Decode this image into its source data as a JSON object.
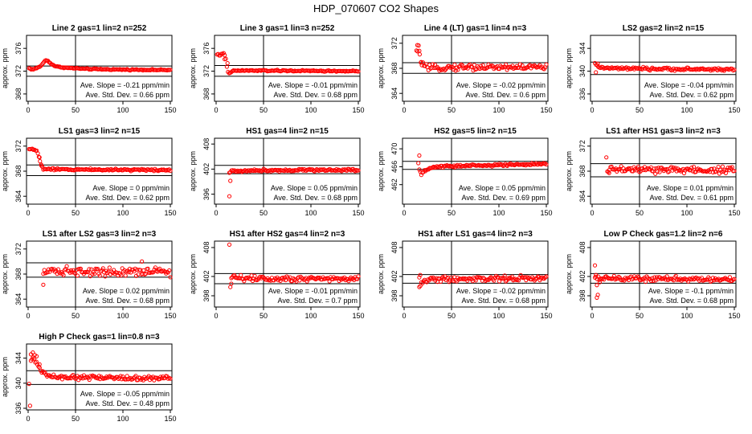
{
  "title": "HDP_070607  CO2 Shapes",
  "ylabel": "approx. ppm",
  "x_ticks": [
    0,
    50,
    100,
    150
  ],
  "point_color": "#ff0000",
  "slope_label": "Ave. Slope =",
  "slope_unit": "ppm/min",
  "sd_label": "Ave. Std. Dev. =",
  "sd_unit": "ppm",
  "chart_data": [
    {
      "type": "scatter",
      "title": "Line 2 gas=1 lin=2 n=252",
      "xlim": [
        0,
        150
      ],
      "ylim": [
        367,
        378
      ],
      "yticks": [
        368,
        372,
        376
      ],
      "hlines": [
        372.9,
        371.1
      ],
      "vline": 50,
      "shape": [
        [
          1,
          372.5
        ],
        [
          5,
          372.3
        ],
        [
          10,
          372.6
        ],
        [
          14,
          373.0
        ],
        [
          17,
          373.7
        ],
        [
          19,
          373.9
        ],
        [
          21,
          373.8
        ],
        [
          23,
          373.5
        ],
        [
          26,
          373.1
        ],
        [
          30,
          372.8
        ],
        [
          40,
          372.6
        ],
        [
          60,
          372.4
        ],
        [
          90,
          372.3
        ],
        [
          150,
          372.2
        ]
      ],
      "x_range": [
        1,
        150
      ],
      "count": 135,
      "noise": 0.05,
      "slope": "-0.21",
      "sd": "0.66"
    },
    {
      "type": "scatter",
      "title": "Line 3 gas=1 lin=3 n=252",
      "xlim": [
        0,
        150
      ],
      "ylim": [
        367,
        378
      ],
      "yticks": [
        368,
        372,
        376
      ],
      "hlines": [
        373.0,
        371.1
      ],
      "vline": 50,
      "shape": [
        [
          1,
          375.0
        ],
        [
          4,
          374.8
        ],
        [
          8,
          375.1
        ],
        [
          10,
          374.5
        ],
        [
          12,
          372.0
        ],
        [
          14,
          371.5
        ],
        [
          16,
          371.9
        ],
        [
          20,
          372.1
        ],
        [
          50,
          372.1
        ],
        [
          150,
          372.0
        ]
      ],
      "x_range": [
        1,
        150
      ],
      "count": 130,
      "noise": 0.06,
      "outliers": [
        [
          12,
          373.4
        ],
        [
          9,
          374.1
        ]
      ],
      "slope": "-0.01",
      "sd": "0.68"
    },
    {
      "type": "scatter",
      "title": "Line 4 (LT) gas=1 lin=4 n=3",
      "xlim": [
        0,
        150
      ],
      "ylim": [
        363,
        373
      ],
      "yticks": [
        364,
        368,
        372
      ],
      "hlines": [
        368.9,
        367.2
      ],
      "vline": 50,
      "shape": [
        [
          13,
          370.5
        ],
        [
          15,
          371.3
        ],
        [
          17,
          369.5
        ],
        [
          20,
          368.6
        ],
        [
          25,
          367.9
        ],
        [
          35,
          368.1
        ],
        [
          60,
          368.2
        ],
        [
          150,
          368.2
        ]
      ],
      "x_range": [
        13,
        150
      ],
      "count": 120,
      "noise": 0.25,
      "outliers": [
        [
          14,
          371.7
        ],
        [
          16,
          370.8
        ],
        [
          18,
          369.0
        ]
      ],
      "slope": "-0.02",
      "sd": "0.6"
    },
    {
      "type": "scatter",
      "title": "LS2 gas=2 lin=2 n=15",
      "xlim": [
        0,
        150
      ],
      "ylim": [
        335,
        346
      ],
      "yticks": [
        336,
        340,
        344
      ],
      "hlines": [
        341.6,
        339.4
      ],
      "vline": 50,
      "shape": [
        [
          3,
          341.2
        ],
        [
          6,
          340.9
        ],
        [
          10,
          340.6
        ],
        [
          20,
          340.5
        ],
        [
          60,
          340.4
        ],
        [
          150,
          340.3
        ]
      ],
      "x_range": [
        3,
        150
      ],
      "count": 125,
      "noise": 0.12,
      "outliers": [
        [
          4,
          339.8
        ],
        [
          6,
          341.3
        ]
      ],
      "slope": "-0.04",
      "sd": "0.62"
    },
    {
      "type": "scatter",
      "title": "LS1 gas=3 lin=2 n=15",
      "xlim": [
        0,
        150
      ],
      "ylim": [
        363,
        373
      ],
      "yticks": [
        364,
        368,
        372
      ],
      "hlines": [
        369.0,
        367.3
      ],
      "vline": 50,
      "shape": [
        [
          1,
          371.5
        ],
        [
          5,
          371.5
        ],
        [
          9,
          371.3
        ],
        [
          11,
          370.6
        ],
        [
          13,
          369.2
        ],
        [
          16,
          368.4
        ],
        [
          20,
          368.3
        ],
        [
          150,
          368.2
        ]
      ],
      "x_range": [
        1,
        150
      ],
      "count": 130,
      "noise": 0.08,
      "outliers": [
        [
          12,
          370.2
        ],
        [
          14,
          368.9
        ]
      ],
      "slope": "0",
      "sd": "0.62"
    },
    {
      "type": "scatter",
      "title": "HS1 gas=4 lin=2 n=15",
      "xlim": [
        0,
        150
      ],
      "ylim": [
        394,
        409
      ],
      "yticks": [
        396,
        402,
        408
      ],
      "hlines": [
        402.9,
        400.9
      ],
      "vline": 50,
      "shape": [
        [
          14,
          401.0
        ],
        [
          16,
          401.6
        ],
        [
          20,
          401.5
        ],
        [
          40,
          401.7
        ],
        [
          100,
          401.8
        ],
        [
          150,
          401.8
        ]
      ],
      "x_range": [
        14,
        150
      ],
      "count": 125,
      "noise": 0.14,
      "outliers": [
        [
          14,
          395.5
        ],
        [
          15,
          399.2
        ]
      ],
      "slope": "0.05",
      "sd": "0.68"
    },
    {
      "type": "scatter",
      "title": "HS2 gas=5 lin=2 n=15",
      "xlim": [
        0,
        150
      ],
      "ylim": [
        458,
        472
      ],
      "yticks": [
        462,
        466,
        470
      ],
      "hlines": [
        467.2,
        465.4
      ],
      "vline": 50,
      "shape": [
        [
          16,
          465.2
        ],
        [
          18,
          464.3
        ],
        [
          20,
          464.7
        ],
        [
          25,
          465.5
        ],
        [
          35,
          466.0
        ],
        [
          60,
          466.2
        ],
        [
          150,
          466.6
        ]
      ],
      "x_range": [
        16,
        150
      ],
      "count": 125,
      "noise": 0.13,
      "outliers": [
        [
          16,
          468.5
        ],
        [
          15,
          466.8
        ]
      ],
      "slope": "0.05",
      "sd": "0.69"
    },
    {
      "type": "scatter",
      "title": "LS1 after HS1 gas=3 lin=2 n=3",
      "xlim": [
        0,
        150
      ],
      "ylim": [
        363,
        373
      ],
      "yticks": [
        364,
        368,
        372
      ],
      "hlines": [
        369.2,
        367.1
      ],
      "vline": 50,
      "shape": [
        [
          16,
          367.4
        ],
        [
          20,
          368.5
        ],
        [
          30,
          368.3
        ],
        [
          60,
          368.2
        ],
        [
          150,
          368.2
        ]
      ],
      "x_range": [
        16,
        150
      ],
      "count": 120,
      "noise": 0.3,
      "outliers": [
        [
          15,
          370.2
        ],
        [
          18,
          367.7
        ]
      ],
      "slope": "0.01",
      "sd": "0.61"
    },
    {
      "type": "scatter",
      "title": "LS1 after LS2 gas=3 lin=2 n=3",
      "xlim": [
        0,
        150
      ],
      "ylim": [
        363,
        373
      ],
      "yticks": [
        364,
        368,
        372
      ],
      "hlines": [
        369.8,
        367.5
      ],
      "vline": 50,
      "shape": [
        [
          16,
          368.6
        ],
        [
          30,
          368.5
        ],
        [
          150,
          368.4
        ]
      ],
      "x_range": [
        16,
        150
      ],
      "count": 120,
      "noise": 0.35,
      "outliers": [
        [
          16,
          366.3
        ],
        [
          120,
          370.0
        ]
      ],
      "slope": "0.02",
      "sd": "0.68"
    },
    {
      "type": "scatter",
      "title": "HS1 after HS2 gas=4 lin=2 n=3",
      "xlim": [
        0,
        150
      ],
      "ylim": [
        396,
        409
      ],
      "yticks": [
        398,
        402,
        408
      ],
      "hlines": [
        402.6,
        400.5
      ],
      "vline": 50,
      "shape": [
        [
          16,
          402.0
        ],
        [
          30,
          401.6
        ],
        [
          150,
          401.6
        ]
      ],
      "x_range": [
        16,
        150
      ],
      "count": 120,
      "noise": 0.3,
      "outliers": [
        [
          14,
          408.6
        ],
        [
          15,
          399.8
        ],
        [
          16,
          400.5
        ]
      ],
      "slope": "-0.01",
      "sd": "0.7"
    },
    {
      "type": "scatter",
      "title": "HS1 after LS1 gas=4 lin=2 n=3",
      "xlim": [
        0,
        150
      ],
      "ylim": [
        396,
        409
      ],
      "yticks": [
        398,
        402,
        408
      ],
      "hlines": [
        402.4,
        400.6
      ],
      "vline": 50,
      "shape": [
        [
          16,
          400.0
        ],
        [
          20,
          401.0
        ],
        [
          30,
          401.5
        ],
        [
          150,
          401.6
        ]
      ],
      "x_range": [
        16,
        150
      ],
      "count": 120,
      "noise": 0.3,
      "outliers": [
        [
          16,
          401.8
        ],
        [
          17,
          402.3
        ]
      ],
      "slope": "-0.02",
      "sd": "0.68"
    },
    {
      "type": "scatter",
      "title": "Low P Check gas=1.2 lin=2 n=6",
      "xlim": [
        0,
        150
      ],
      "ylim": [
        396,
        409
      ],
      "yticks": [
        398,
        402,
        408
      ],
      "hlines": [
        402.6,
        400.6
      ],
      "vline": 50,
      "shape": [
        [
          3,
          401.8
        ],
        [
          10,
          401.6
        ],
        [
          150,
          401.4
        ]
      ],
      "x_range": [
        3,
        150
      ],
      "count": 125,
      "noise": 0.25,
      "outliers": [
        [
          3,
          404.3
        ],
        [
          4,
          402.3
        ],
        [
          5,
          400.2
        ],
        [
          6,
          398.2
        ],
        [
          5,
          397.6
        ],
        [
          8,
          400.8
        ]
      ],
      "slope": "-0.1",
      "sd": "0.68"
    },
    {
      "type": "scatter",
      "title": "High P Check gas=1 lin=0.8 n=3",
      "xlim": [
        0,
        150
      ],
      "ylim": [
        336,
        346
      ],
      "yticks": [
        336,
        340,
        344
      ],
      "hlines": [
        342.0,
        339.8
      ],
      "vline": 50,
      "shape": [
        [
          3,
          343.5
        ],
        [
          5,
          344.0
        ],
        [
          8,
          343.4
        ],
        [
          11,
          342.8
        ],
        [
          14,
          342.0
        ],
        [
          18,
          341.5
        ],
        [
          25,
          341.0
        ],
        [
          40,
          340.9
        ],
        [
          150,
          340.8
        ]
      ],
      "x_range": [
        3,
        150
      ],
      "count": 130,
      "noise": 0.18,
      "outliers": [
        [
          1,
          339.9
        ],
        [
          2,
          336.4
        ],
        [
          3,
          344.6
        ],
        [
          5,
          344.9
        ],
        [
          7,
          344.5
        ],
        [
          9,
          344.3
        ],
        [
          12,
          343.0
        ]
      ],
      "slope": "-0.05",
      "sd": "0.48"
    }
  ]
}
